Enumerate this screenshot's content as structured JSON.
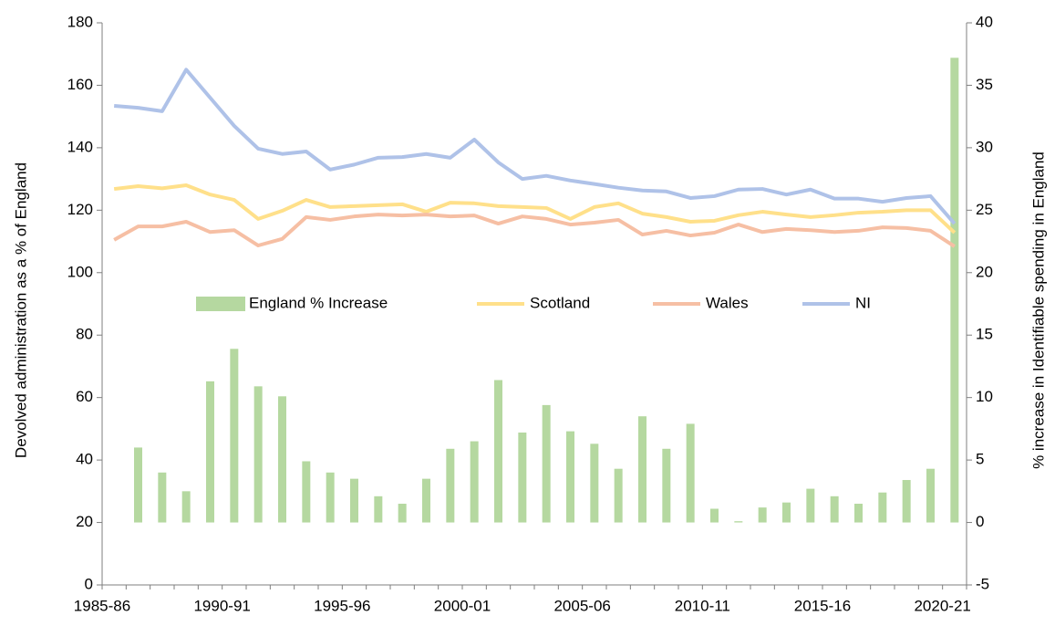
{
  "chart_data": {
    "type": "combo",
    "y_label": "Devolved administration as a % of England",
    "y2_label": "% increase in Identifiable spending in England",
    "categories": [
      "1985-86",
      null,
      null,
      null,
      null,
      "1990-91",
      null,
      null,
      null,
      null,
      "1995-96",
      null,
      null,
      null,
      null,
      "2000-01",
      null,
      null,
      null,
      null,
      "2005-06",
      null,
      null,
      null,
      null,
      "2010-11",
      null,
      null,
      null,
      null,
      "2015-16",
      null,
      null,
      null,
      null,
      "2020-21"
    ],
    "ylim": [
      0,
      180
    ],
    "yticks": [
      0,
      20,
      40,
      60,
      80,
      100,
      120,
      140,
      160,
      180
    ],
    "y2lim": [
      -5,
      40
    ],
    "y2ticks": [
      -5,
      0,
      5,
      10,
      15,
      20,
      25,
      30,
      35,
      40
    ],
    "legend": "center",
    "series": [
      {
        "name": "England % Increase",
        "type": "bar",
        "axis": "y2",
        "color": "#b5d8a0",
        "values": [
          null,
          6.0,
          4.0,
          2.5,
          11.3,
          13.9,
          10.9,
          10.1,
          4.9,
          4.0,
          3.5,
          2.1,
          1.5,
          3.5,
          5.9,
          6.5,
          11.4,
          7.2,
          9.4,
          7.3,
          6.3,
          4.3,
          8.5,
          5.9,
          7.9,
          1.1,
          0.1,
          1.2,
          1.6,
          2.7,
          2.1,
          1.5,
          2.4,
          3.4,
          4.3,
          37.2
        ]
      },
      {
        "name": "Scotland",
        "type": "line",
        "color": "#ffe08a",
        "values": [
          126.8,
          127.7,
          127,
          128,
          125,
          123.3,
          117.2,
          119.8,
          123.3,
          121,
          121.3,
          121.6,
          121.9,
          119.5,
          122.4,
          122.2,
          121.3,
          121,
          120.7,
          117.2,
          121,
          122.2,
          118.9,
          117.8,
          116.3,
          116.6,
          118.4,
          119.5,
          118.6,
          117.8,
          118.4,
          119.2,
          119.5,
          120,
          120,
          112.8
        ]
      },
      {
        "name": "Wales",
        "type": "line",
        "color": "#f6bfa4",
        "values": [
          110.5,
          114.8,
          114.8,
          116.3,
          113,
          113.6,
          108.7,
          110.8,
          117.8,
          116.9,
          118,
          118.6,
          118.3,
          118.6,
          118,
          118.3,
          115.7,
          118,
          117.2,
          115.4,
          116,
          116.9,
          112.2,
          113.4,
          111.9,
          112.8,
          115.4,
          113,
          114,
          113.6,
          113,
          113.4,
          114.5,
          114.3,
          113.4,
          108.4
        ]
      },
      {
        "name": "NI",
        "type": "line",
        "color": "#afc2e8",
        "values": [
          153.4,
          152.8,
          151.7,
          165,
          156,
          147,
          139.7,
          138,
          138.8,
          133,
          134.6,
          136.8,
          137,
          138,
          136.8,
          142.6,
          135.3,
          130,
          131,
          129.5,
          128.4,
          127.2,
          126.3,
          126,
          123.9,
          124.5,
          126.6,
          126.8,
          125,
          126.6,
          123.7,
          123.7,
          122.7,
          123.9,
          124.5,
          115.7
        ]
      }
    ]
  }
}
